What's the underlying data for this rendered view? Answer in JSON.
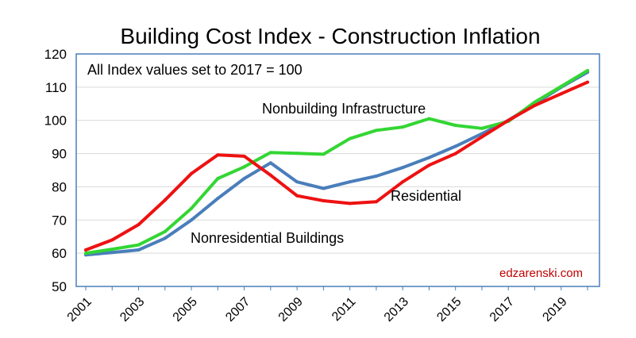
{
  "chart_data": {
    "type": "line",
    "title": "Building Cost Index  - Construction Inflation",
    "subtitle": "All Index values set to 2017 = 100",
    "watermark": "edzarenski.com",
    "xlabel": "",
    "ylabel": "",
    "xlim": [
      2001,
      2020
    ],
    "ylim": [
      50,
      120
    ],
    "yticks": [
      50,
      60,
      70,
      80,
      90,
      100,
      110,
      120
    ],
    "xtick_labels": [
      "2001",
      "2003",
      "2005",
      "2007",
      "2009",
      "2011",
      "2013",
      "2015",
      "2017",
      "2019"
    ],
    "xtick_values": [
      2001,
      2003,
      2005,
      2007,
      2009,
      2011,
      2013,
      2015,
      2017,
      2019
    ],
    "grid": true,
    "x": [
      2001,
      2002,
      2003,
      2004,
      2005,
      2006,
      2007,
      2008,
      2009,
      2010,
      2011,
      2012,
      2013,
      2014,
      2015,
      2016,
      2017,
      2018,
      2019,
      2020
    ],
    "series": [
      {
        "name": "Nonresidential Buildings",
        "color": "#4a7ebb",
        "values": [
          59.5,
          60.2,
          61,
          64.5,
          70,
          76.5,
          82.5,
          87.2,
          81.5,
          79.5,
          81.5,
          83.2,
          85.8,
          88.8,
          92.2,
          96,
          100,
          105,
          110,
          114.5
        ]
      },
      {
        "name": "Nonbuilding Infrastructure",
        "color": "#33d633",
        "values": [
          60,
          61.2,
          62.5,
          66.5,
          73.5,
          82.5,
          86,
          90.3,
          90.1,
          89.8,
          94.5,
          97,
          98,
          100.5,
          98.5,
          97.6,
          99.7,
          105.5,
          110.2,
          115
        ]
      },
      {
        "name": "Residential",
        "color": "#ee1111",
        "values": [
          61,
          64,
          68.6,
          76,
          84,
          89.6,
          89.2,
          83.5,
          77.3,
          75.8,
          75,
          75.5,
          81.5,
          86.5,
          90,
          95,
          100,
          104.5,
          108,
          111.5
        ]
      }
    ],
    "annotations": [
      {
        "text": "Nonbuilding Infrastructure",
        "series": "Nonbuilding Infrastructure"
      },
      {
        "text": "Residential",
        "series": "Residential"
      },
      {
        "text": "Nonresidential Buildings",
        "series": "Nonresidential Buildings"
      }
    ]
  }
}
